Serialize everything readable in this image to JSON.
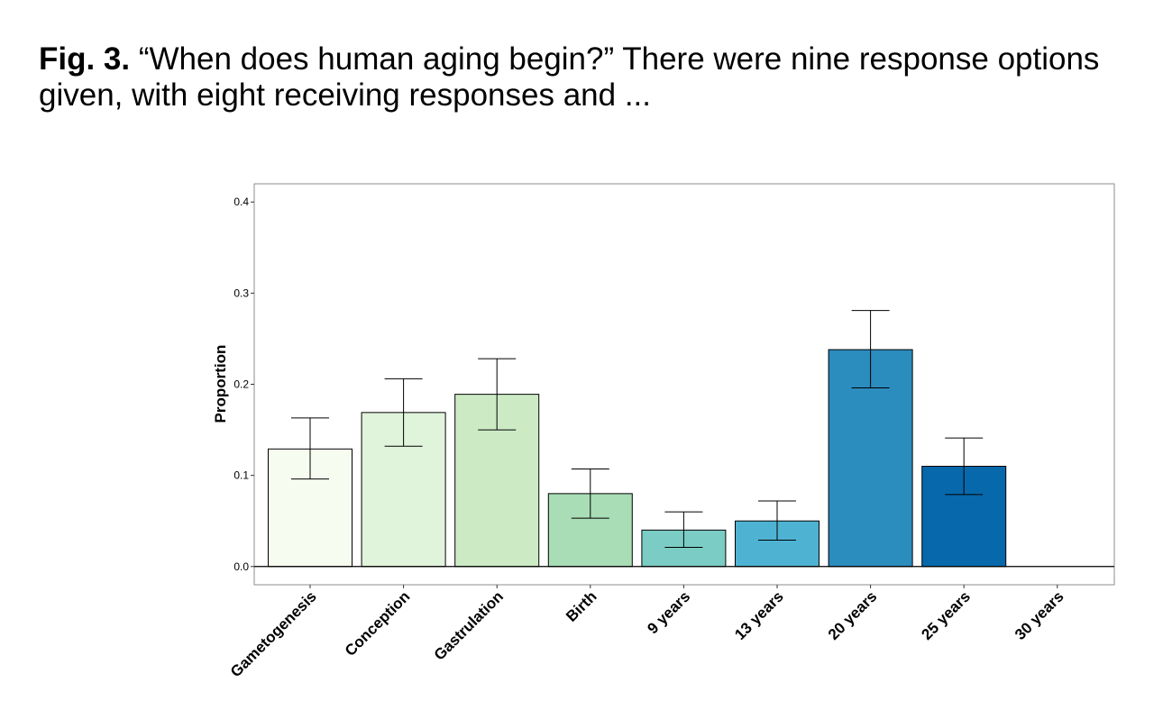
{
  "caption": {
    "label": "Fig. 3.",
    "text": " “When does human aging begin?” There were nine response options given, with eight receiving responses and ..."
  },
  "chart_data": {
    "type": "bar",
    "ylabel": "Proportion",
    "xlabel": "",
    "ylim": [
      -0.02,
      0.42
    ],
    "yticks": [
      0.0,
      0.1,
      0.2,
      0.3,
      0.4
    ],
    "ytick_labels": [
      "0.0",
      "0.1",
      "0.2",
      "0.3",
      "0.4"
    ],
    "categories": [
      "Gametogenesis",
      "Conception",
      "Gastrulation",
      "Birth",
      "9 years",
      "13 years",
      "20 years",
      "25 years",
      "30 years"
    ],
    "values": [
      0.129,
      0.169,
      0.189,
      0.08,
      0.04,
      0.05,
      0.238,
      0.11,
      0.0
    ],
    "error_low": [
      0.096,
      0.132,
      0.15,
      0.053,
      0.021,
      0.029,
      0.196,
      0.079,
      null
    ],
    "error_high": [
      0.163,
      0.206,
      0.228,
      0.107,
      0.06,
      0.072,
      0.281,
      0.141,
      null
    ],
    "colors": [
      "#f7fcf0",
      "#e0f3db",
      "#ccebc5",
      "#a8ddb5",
      "#7bccc4",
      "#4eb3d3",
      "#2b8cbe",
      "#0868ac",
      "#084081"
    ],
    "grid": false,
    "legend": "none"
  }
}
